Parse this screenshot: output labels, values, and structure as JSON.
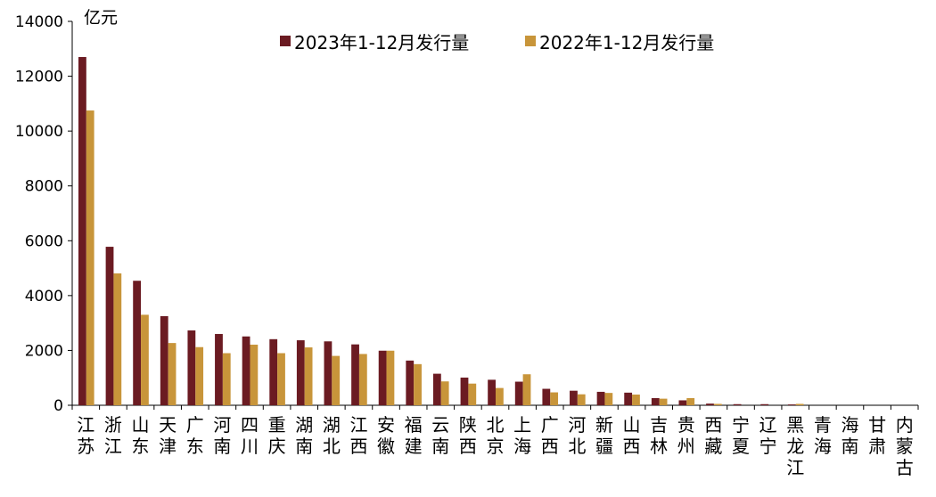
{
  "chart_data": {
    "type": "bar",
    "unit": "亿元",
    "categories": [
      "江苏",
      "浙江",
      "山东",
      "天津",
      "广东",
      "河南",
      "四川",
      "重庆",
      "湖南",
      "湖北",
      "江西",
      "安徽",
      "福建",
      "云南",
      "陕西",
      "北京",
      "上海",
      "广西",
      "河北",
      "新疆",
      "山西",
      "吉林",
      "贵州",
      "西藏",
      "宁夏",
      "辽宁",
      "黑龙江",
      "青海",
      "海南",
      "甘肃",
      "内蒙古"
    ],
    "series": [
      {
        "name": "2023年1-12月发行量",
        "color": "#6b1b22",
        "values": [
          12700,
          5780,
          4540,
          3250,
          2730,
          2600,
          2510,
          2410,
          2370,
          2330,
          2220,
          1990,
          1630,
          1150,
          1010,
          930,
          860,
          600,
          530,
          490,
          460,
          260,
          180,
          60,
          40,
          40,
          30,
          0,
          0,
          0,
          0
        ]
      },
      {
        "name": "2022年1-12月发行量",
        "color": "#c8953a",
        "values": [
          10750,
          4810,
          3300,
          2270,
          2120,
          1900,
          2210,
          1900,
          2110,
          1800,
          1870,
          1990,
          1500,
          870,
          790,
          630,
          1130,
          470,
          400,
          450,
          390,
          240,
          260,
          50,
          0,
          0,
          50,
          0,
          0,
          0,
          0
        ]
      }
    ],
    "y_ticks": [
      "0",
      "2000",
      "4000",
      "6000",
      "8000",
      "10000",
      "12000",
      "14000"
    ],
    "ylim": [
      0,
      14000
    ],
    "grid": false,
    "legend_position": "top"
  }
}
